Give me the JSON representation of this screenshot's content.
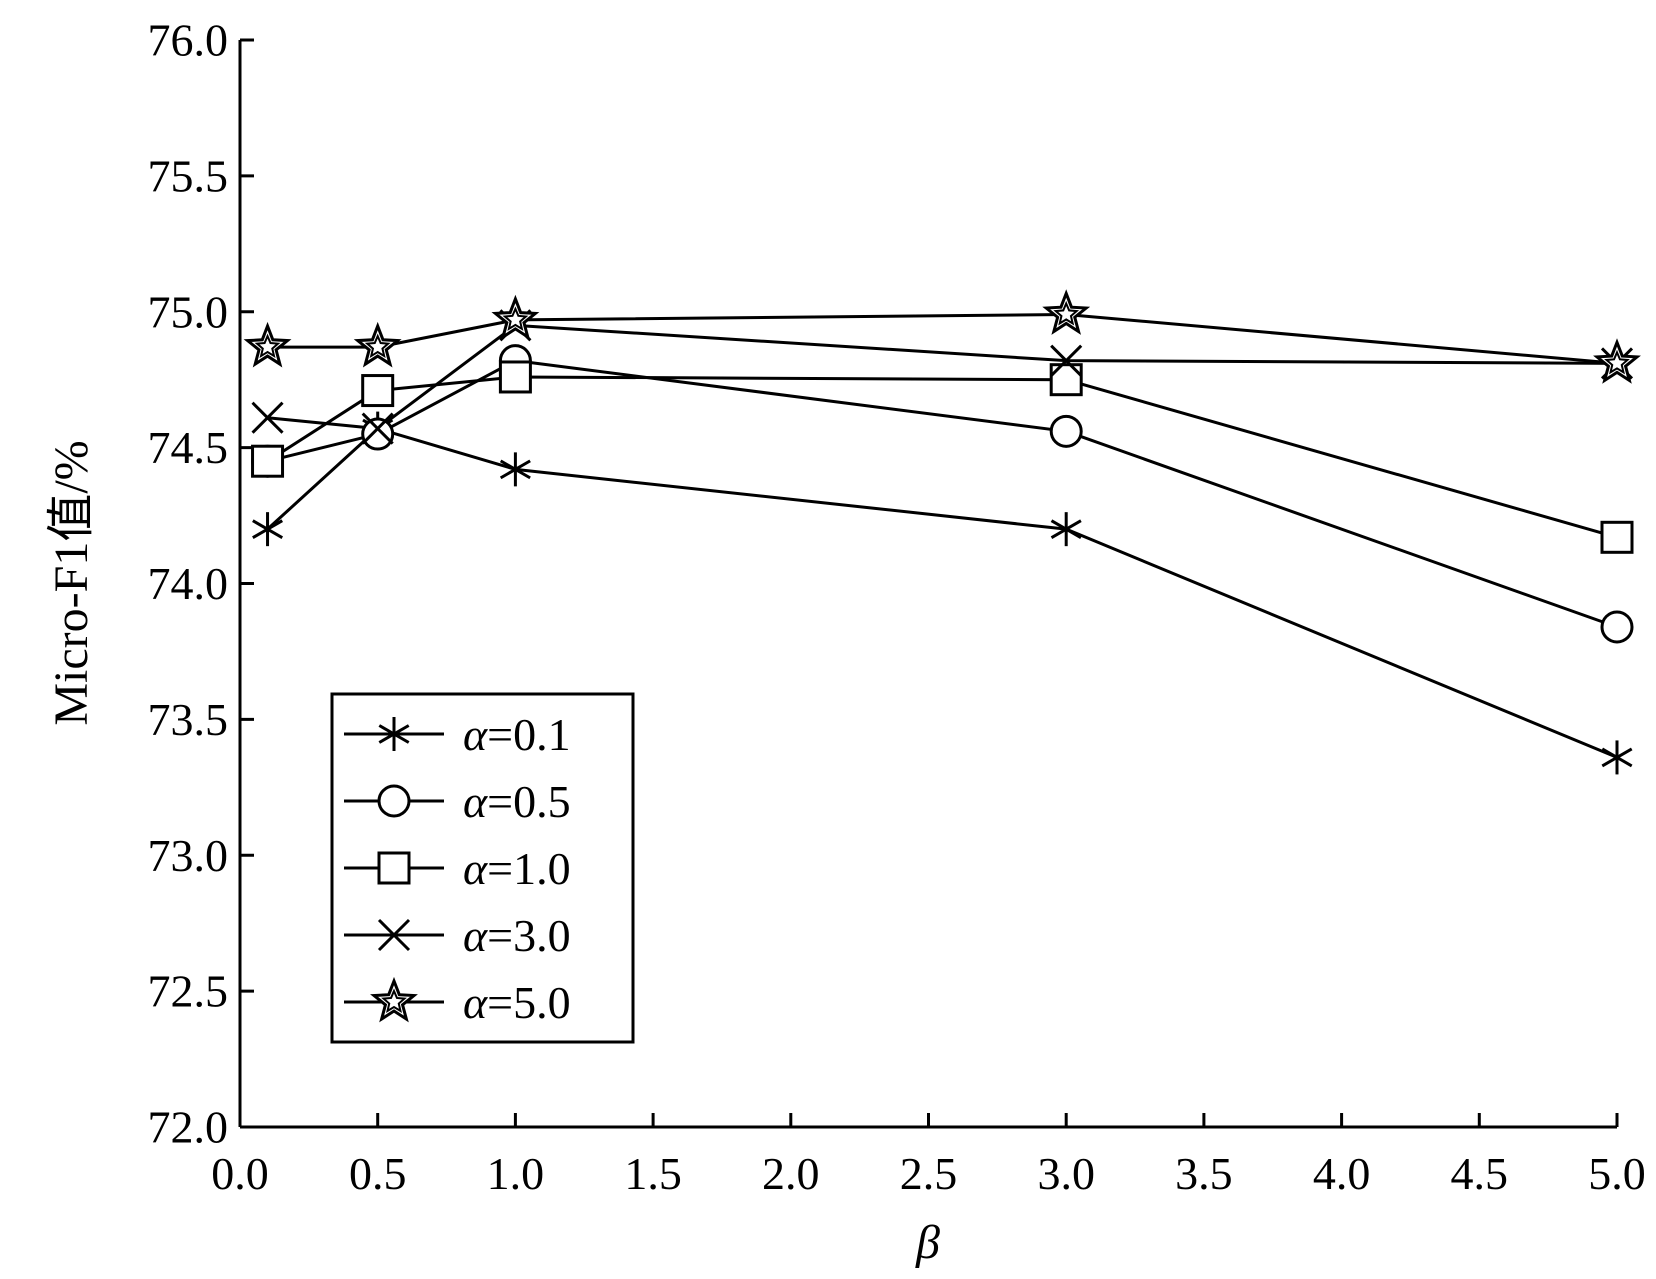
{
  "chart_data": {
    "type": "line",
    "xlabel": "β",
    "ylabel": "Micro-F1值/%",
    "xlim": [
      0.0,
      5.0
    ],
    "ylim": [
      72.0,
      76.0
    ],
    "x_ticks": [
      "0.0",
      "0.5",
      "1.0",
      "1.5",
      "2.0",
      "2.5",
      "3.0",
      "3.5",
      "4.0",
      "4.5",
      "5.0"
    ],
    "y_ticks": [
      "72.0",
      "72.5",
      "73.0",
      "73.5",
      "74.0",
      "74.5",
      "75.0",
      "75.5",
      "76.0"
    ],
    "x": [
      0.1,
      0.5,
      1.0,
      3.0,
      5.0
    ],
    "legend_position": "bottom-left",
    "grid": false,
    "line_color": "#000000",
    "series": [
      {
        "name": "α=0.1",
        "legend_symbol": "α",
        "legend_value": "=0.1",
        "marker": "asterisk",
        "values": [
          74.2,
          74.57,
          74.42,
          74.2,
          73.36
        ]
      },
      {
        "name": "α=0.5",
        "legend_symbol": "α",
        "legend_value": "=0.5",
        "marker": "circle",
        "values": [
          74.45,
          74.55,
          74.82,
          74.56,
          73.84
        ]
      },
      {
        "name": "α=1.0",
        "legend_symbol": "α",
        "legend_value": "=1.0",
        "marker": "square",
        "values": [
          74.45,
          74.71,
          74.76,
          74.75,
          74.17
        ]
      },
      {
        "name": "α=3.0",
        "legend_symbol": "α",
        "legend_value": "=3.0",
        "marker": "x",
        "values": [
          74.61,
          74.57,
          74.95,
          74.82,
          74.81
        ]
      },
      {
        "name": "α=5.0",
        "legend_symbol": "α",
        "legend_value": "=5.0",
        "marker": "star",
        "values": [
          74.87,
          74.87,
          74.97,
          74.99,
          74.81
        ]
      }
    ]
  }
}
